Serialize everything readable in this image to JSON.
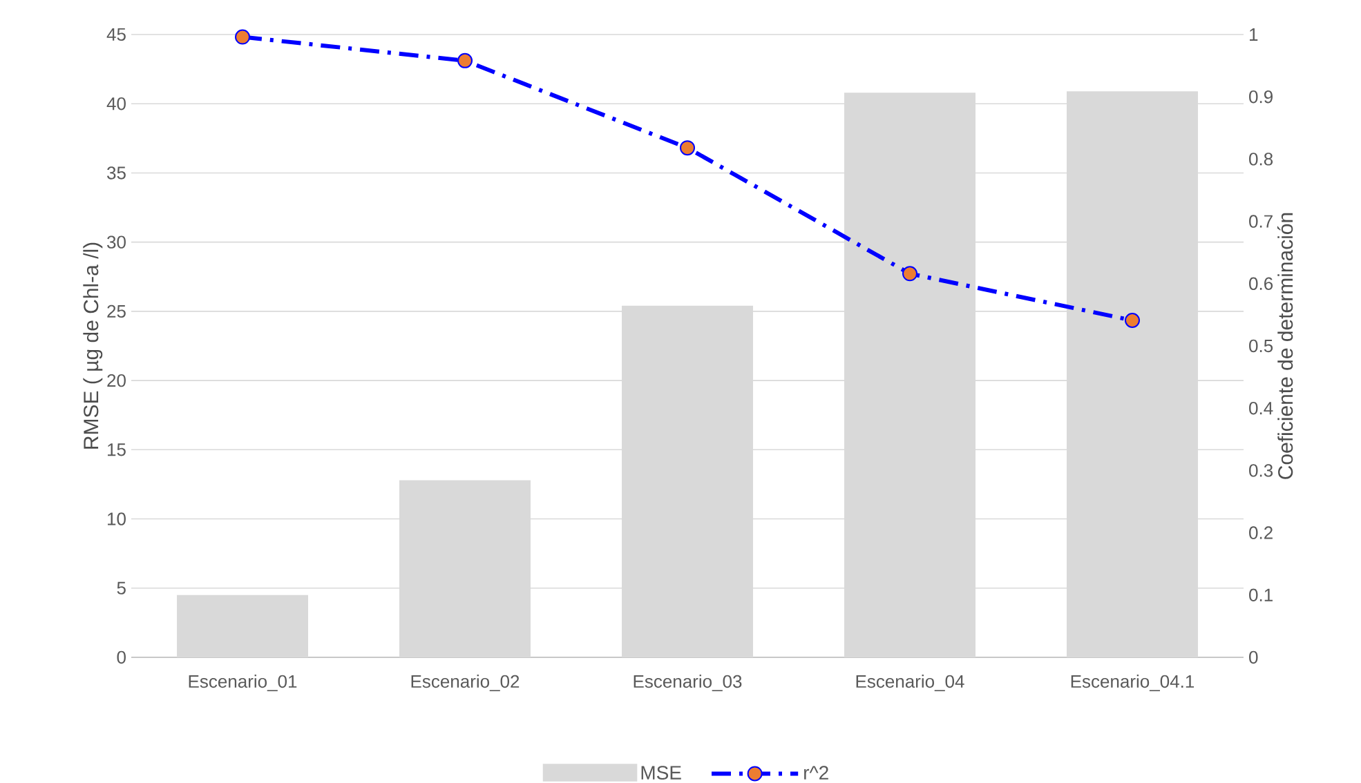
{
  "chart_data": {
    "type": "bar",
    "categories": [
      "Escenario_01",
      "Escenario_02",
      "Escenario_03",
      "Escenario_04",
      "Escenario_04.1"
    ],
    "series": [
      {
        "name": "MSE",
        "color": "#d9d9d9",
        "values": [
          4.5,
          12.8,
          25.4,
          40.8,
          40.9
        ]
      },
      {
        "name": "r^2",
        "type": "line",
        "axis": "y2",
        "color": "#0000ff",
        "colors": [
          "#ed7d31",
          "#ed7d31",
          "#ed7d31",
          "#ed7d31",
          "#ed7d31"
        ],
        "marker": "circle",
        "line_style": "dashed",
        "values": [
          0.996,
          0.958,
          0.818,
          0.616,
          0.541
        ]
      }
    ],
    "ylabel": "RMSE ( µg de Chl-a /l)",
    "y2label": "Coeficiente de determinación",
    "ylim": [
      0,
      45
    ],
    "yticks": [
      0,
      5,
      10,
      15,
      20,
      25,
      30,
      35,
      40,
      45
    ],
    "y2lim": [
      0,
      1
    ],
    "y2ticks": [
      0,
      0.1,
      0.2,
      0.3,
      0.4,
      0.5,
      0.6,
      0.7,
      0.8,
      0.9,
      1
    ],
    "grid": "y",
    "legend": "bottom"
  }
}
